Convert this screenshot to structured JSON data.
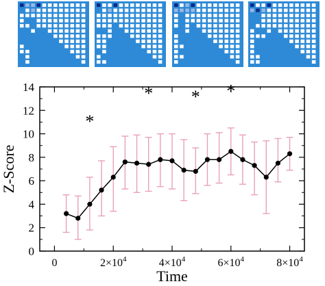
{
  "chart_data": {
    "type": "line",
    "xlabel": "Time",
    "ylabel": "Z-Score",
    "xlim": [
      -5000,
      85000
    ],
    "ylim": [
      0,
      14
    ],
    "x_ticks": [
      0,
      20000,
      40000,
      60000,
      80000
    ],
    "x_tick_labels": [
      {
        "base": "0",
        "exp": ""
      },
      {
        "base": "2×10",
        "exp": "4"
      },
      {
        "base": "4×10",
        "exp": "4"
      },
      {
        "base": "6×10",
        "exp": "4"
      },
      {
        "base": "8×10",
        "exp": "4"
      }
    ],
    "y_ticks": [
      0,
      2,
      4,
      6,
      8,
      10,
      12,
      14
    ],
    "y_tick_labels": [
      "0",
      "2",
      "4",
      "6",
      "8",
      "10",
      "12",
      "14"
    ],
    "grid": false,
    "series": [
      {
        "x": [
          4000,
          8000,
          12000,
          16000,
          20000,
          24000,
          28000,
          32000,
          36000,
          40000,
          44000,
          48000,
          52000,
          56000,
          60000,
          64000,
          68000,
          72000,
          76000,
          80000
        ],
        "y": [
          3.2,
          2.8,
          4.0,
          5.2,
          6.3,
          7.6,
          7.5,
          7.4,
          7.8,
          7.7,
          6.9,
          6.8,
          7.8,
          7.8,
          8.5,
          7.8,
          7.3,
          6.3,
          7.5,
          8.3
        ],
        "err_low": [
          1.6,
          1.0,
          1.8,
          3.0,
          3.4,
          5.3,
          5.0,
          5.1,
          5.5,
          5.3,
          4.3,
          4.9,
          5.6,
          5.8,
          6.5,
          5.7,
          4.8,
          3.2,
          5.9,
          6.9
        ],
        "err_high": [
          4.8,
          4.7,
          6.3,
          7.7,
          8.9,
          9.8,
          9.9,
          9.7,
          10.0,
          10.0,
          9.5,
          8.8,
          10.0,
          10.1,
          10.5,
          9.9,
          9.3,
          9.4,
          9.6,
          9.7
        ],
        "line_color": "#000000",
        "marker_color": "#000000",
        "error_bar_color": "#e8a0b8"
      }
    ],
    "annotations": [
      {
        "text": "*",
        "x": 12000,
        "y": 11.6
      },
      {
        "text": "*",
        "x": 32000,
        "y": 14.0
      },
      {
        "text": "*",
        "x": 48000,
        "y": 13.7
      },
      {
        "text": "*",
        "x": 60000,
        "y": 14.2
      }
    ],
    "thumbnails": {
      "count": 4,
      "grid_size": 12,
      "background_color": "#2e8ad6",
      "cell_color": "#ffffff",
      "highlight_color": "#0a2a8a"
    }
  }
}
